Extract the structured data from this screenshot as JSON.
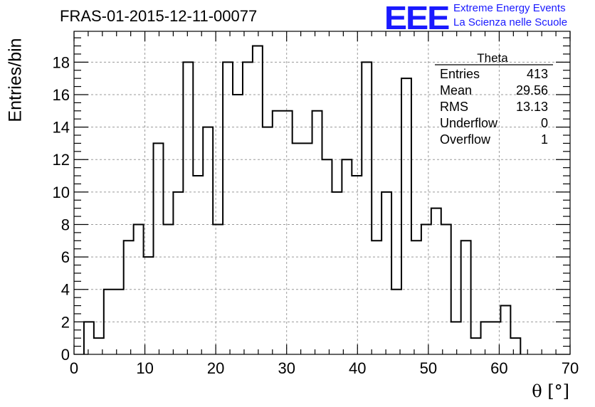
{
  "title": "FRAS-01-2015-12-11-00077",
  "logo": {
    "mark": "EEE",
    "line1": "Extreme Energy Events",
    "line2": "La Scienza nelle Scuole",
    "color": "#1a1aff"
  },
  "stats": {
    "name": "Theta",
    "rows": [
      {
        "label": "Entries",
        "value": "413"
      },
      {
        "label": "Mean",
        "value": "29.56"
      },
      {
        "label": "RMS",
        "value": "13.13"
      },
      {
        "label": "Underflow",
        "value": "0"
      },
      {
        "label": "Overflow",
        "value": "1"
      }
    ]
  },
  "chart_data": {
    "type": "histogram",
    "xlabel": "θ [°]",
    "ylabel": "Entries/bin",
    "xlim": [
      0,
      70
    ],
    "ylim": [
      0,
      19.9
    ],
    "xticks": [
      0,
      10,
      20,
      30,
      40,
      50,
      60,
      70
    ],
    "yticks": [
      0,
      2,
      4,
      6,
      8,
      10,
      12,
      14,
      16,
      18
    ],
    "grid": true,
    "bin_edges": [
      0,
      1.5,
      3,
      4.5,
      6,
      7.5,
      9,
      10.5,
      12,
      13.5,
      15,
      16.5,
      18,
      19.5,
      21,
      22.5,
      24,
      25.5,
      27,
      28.5,
      30,
      31.5,
      33,
      34.5,
      36,
      37.5,
      39,
      40.5,
      42,
      43.5,
      45,
      46.5,
      48,
      49.5,
      51,
      52.5,
      54,
      55.5,
      57,
      58.5,
      60,
      61.5,
      63,
      64.5,
      66,
      67.5,
      69
    ],
    "bin_edges_note": "",
    "bins": [
      {
        "x0": 1.4,
        "x1": 2.8,
        "y": 2
      },
      {
        "x0": 2.8,
        "x1": 4.2,
        "y": 1
      },
      {
        "x0": 4.2,
        "x1": 7.0,
        "y": 4
      },
      {
        "x0": 7.0,
        "x1": 8.4,
        "y": 7
      },
      {
        "x0": 8.4,
        "x1": 9.8,
        "y": 8
      },
      {
        "x0": 9.8,
        "x1": 11.2,
        "y": 6
      },
      {
        "x0": 11.2,
        "x1": 12.6,
        "y": 13
      },
      {
        "x0": 12.6,
        "x1": 14.0,
        "y": 8
      },
      {
        "x0": 14.0,
        "x1": 15.4,
        "y": 10
      },
      {
        "x0": 15.4,
        "x1": 16.8,
        "y": 18
      },
      {
        "x0": 16.8,
        "x1": 18.2,
        "y": 11
      },
      {
        "x0": 18.2,
        "x1": 19.6,
        "y": 14
      },
      {
        "x0": 19.6,
        "x1": 21.0,
        "y": 8
      },
      {
        "x0": 21.0,
        "x1": 22.4,
        "y": 18
      },
      {
        "x0": 22.4,
        "x1": 23.8,
        "y": 16
      },
      {
        "x0": 23.8,
        "x1": 25.2,
        "y": 18
      },
      {
        "x0": 25.2,
        "x1": 26.6,
        "y": 19
      },
      {
        "x0": 26.6,
        "x1": 28.0,
        "y": 14
      },
      {
        "x0": 28.0,
        "x1": 30.8,
        "y": 15
      },
      {
        "x0": 30.8,
        "x1": 33.6,
        "y": 13
      },
      {
        "x0": 33.6,
        "x1": 35.0,
        "y": 15
      },
      {
        "x0": 35.0,
        "x1": 36.4,
        "y": 12
      },
      {
        "x0": 36.4,
        "x1": 37.8,
        "y": 10
      },
      {
        "x0": 37.8,
        "x1": 39.2,
        "y": 12
      },
      {
        "x0": 39.2,
        "x1": 40.6,
        "y": 11
      },
      {
        "x0": 40.6,
        "x1": 42.0,
        "y": 18
      },
      {
        "x0": 42.0,
        "x1": 43.4,
        "y": 7
      },
      {
        "x0": 43.4,
        "x1": 44.8,
        "y": 10
      },
      {
        "x0": 44.8,
        "x1": 46.2,
        "y": 4
      },
      {
        "x0": 46.2,
        "x1": 47.6,
        "y": 17
      },
      {
        "x0": 47.6,
        "x1": 49.0,
        "y": 7
      },
      {
        "x0": 49.0,
        "x1": 50.4,
        "y": 8
      },
      {
        "x0": 50.4,
        "x1": 51.8,
        "y": 9
      },
      {
        "x0": 51.8,
        "x1": 53.2,
        "y": 8
      },
      {
        "x0": 53.2,
        "x1": 54.6,
        "y": 2
      },
      {
        "x0": 54.6,
        "x1": 56.0,
        "y": 7
      },
      {
        "x0": 56.0,
        "x1": 57.4,
        "y": 1
      },
      {
        "x0": 57.4,
        "x1": 60.2,
        "y": 2
      },
      {
        "x0": 60.2,
        "x1": 61.6,
        "y": 3
      },
      {
        "x0": 61.6,
        "x1": 63.0,
        "y": 1
      }
    ]
  }
}
